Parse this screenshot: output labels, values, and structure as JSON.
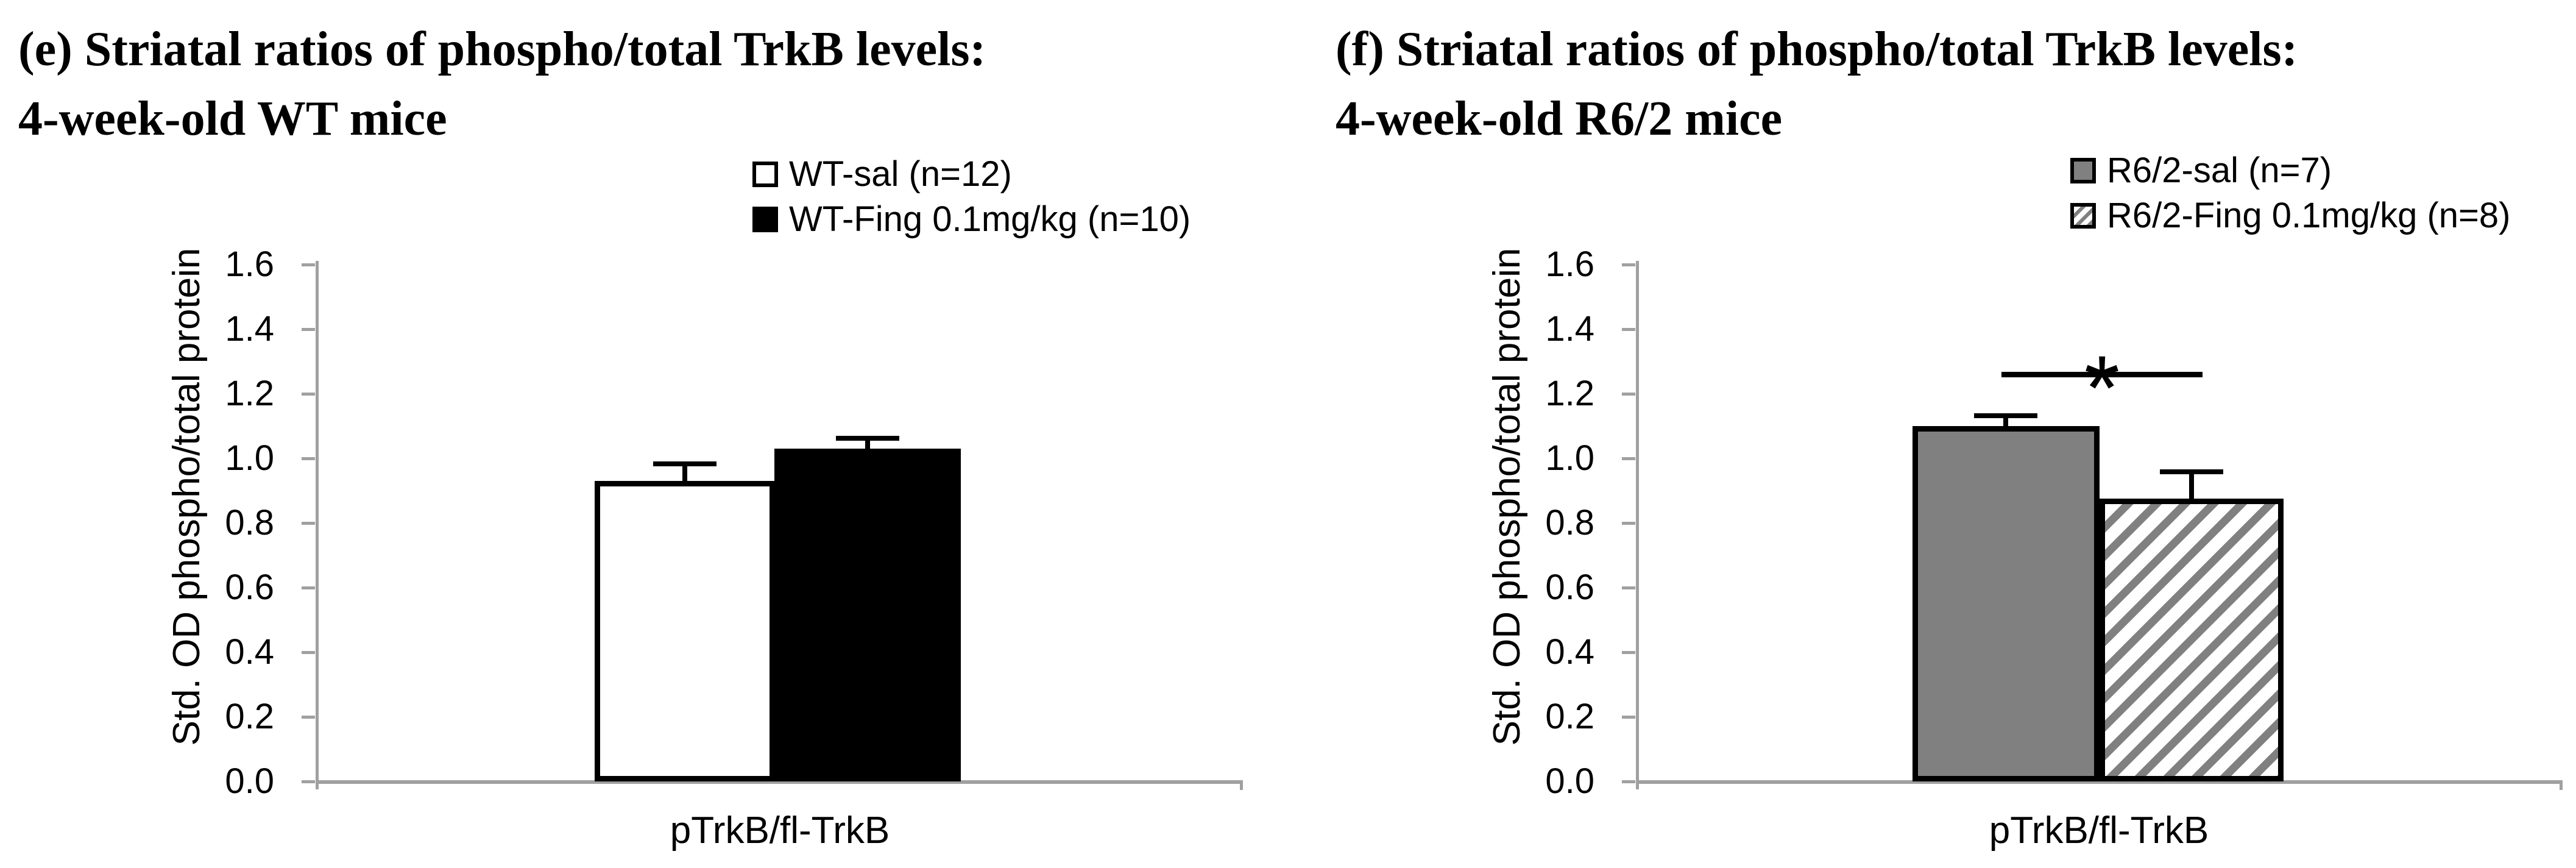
{
  "colors": {
    "bar_gray": "#808080",
    "hatch_stripe_gray": "#808080",
    "axis_gray": "#a0a0a0",
    "black": "#000000",
    "background": "#ffffff"
  },
  "chart_data": [
    {
      "panel": "e",
      "type": "bar",
      "title": "(e) Striatal ratios of phospho/total TrkB levels:",
      "subtitle": "4-week-old WT mice",
      "categories": [
        "pTrkB/fl-TrkB"
      ],
      "series": [
        {
          "name": "WT-sal (n=12)",
          "value": 0.93,
          "error": 0.06,
          "fill": "white"
        },
        {
          "name": "WT-Fing 0.1mg/kg (n=10)",
          "value": 1.03,
          "error": 0.04,
          "fill": "black"
        }
      ],
      "ylabel": "Std. OD phospho/total protein",
      "xlabel": "pTrkB/fl-TrkB",
      "ylim": [
        0.0,
        1.6
      ],
      "ytick_step": 0.2,
      "y_ticks": [
        "1.6",
        "1.4",
        "1.2",
        "1.0",
        "0.8",
        "0.6",
        "0.4",
        "0.2",
        "0.0"
      ],
      "legend": {
        "position": "top-right"
      },
      "grid": false,
      "significance": null
    },
    {
      "panel": "f",
      "type": "bar",
      "title": "(f) Striatal ratios of phospho/total TrkB levels:",
      "subtitle": "4-week-old R6/2 mice",
      "categories": [
        "pTrkB/fl-TrkB"
      ],
      "series": [
        {
          "name": "R6/2-sal (n=7)",
          "value": 1.1,
          "error": 0.04,
          "fill": "gray"
        },
        {
          "name": "R6/2-Fing 0.1mg/kg (n=8)",
          "value": 0.875,
          "error": 0.09,
          "fill": "hatch"
        }
      ],
      "ylabel": "Std. OD phospho/total protein",
      "xlabel": "pTrkB/fl-TrkB",
      "ylim": [
        0.0,
        1.6
      ],
      "ytick_step": 0.2,
      "y_ticks": [
        "1.6",
        "1.4",
        "1.2",
        "1.0",
        "0.8",
        "0.6",
        "0.4",
        "0.2",
        "0.0"
      ],
      "legend": {
        "position": "top-right"
      },
      "grid": false,
      "significance": {
        "symbol": "*",
        "bar_y": 1.25,
        "between": [
          "R6/2-sal (n=7)",
          "R6/2-Fing 0.1mg/kg (n=8)"
        ]
      }
    }
  ]
}
